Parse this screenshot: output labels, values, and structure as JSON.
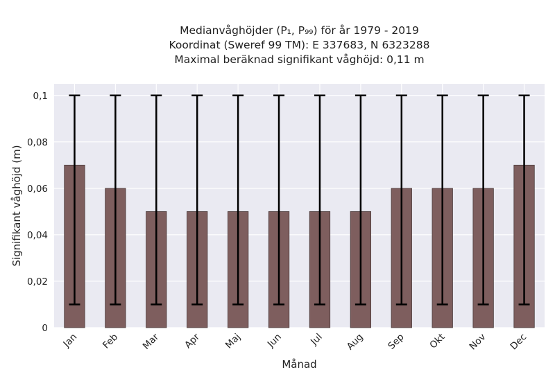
{
  "chart_data": {
    "type": "bar",
    "title_lines": [
      "Medianvåghöjder (P₁, P₉₉) för år 1979 - 2019",
      "Koordinat (Sweref 99 TM): E 337683, N 6323288",
      "Maximal beräknad signifikant våghöjd: 0,11 m"
    ],
    "xlabel": "Månad",
    "ylabel": "Signifikant våghöjd (m)",
    "categories": [
      "Jan",
      "Feb",
      "Mar",
      "Apr",
      "Maj",
      "Jun",
      "Jul",
      "Aug",
      "Sep",
      "Okt",
      "Nov",
      "Dec"
    ],
    "values": [
      0.07,
      0.06,
      0.05,
      0.05,
      0.05,
      0.05,
      0.05,
      0.05,
      0.06,
      0.06,
      0.06,
      0.07
    ],
    "error_low": [
      0.01,
      0.01,
      0.01,
      0.01,
      0.01,
      0.01,
      0.01,
      0.01,
      0.01,
      0.01,
      0.01,
      0.01
    ],
    "error_high": [
      0.1,
      0.1,
      0.1,
      0.1,
      0.1,
      0.1,
      0.1,
      0.1,
      0.1,
      0.1,
      0.1,
      0.1
    ],
    "ylim": [
      0,
      0.105
    ],
    "yticks": [
      0,
      0.02,
      0.04,
      0.06,
      0.08,
      0.1
    ],
    "ytick_labels": [
      "0",
      "0,02",
      "0,04",
      "0,06",
      "0,08",
      "0,1"
    ],
    "grid": true,
    "colors": {
      "bar": "#7e5e5e",
      "bar_edge": "#4a3a3a",
      "plot_bg": "#eaeaf2",
      "grid": "#ffffff",
      "error": "#000000"
    }
  }
}
